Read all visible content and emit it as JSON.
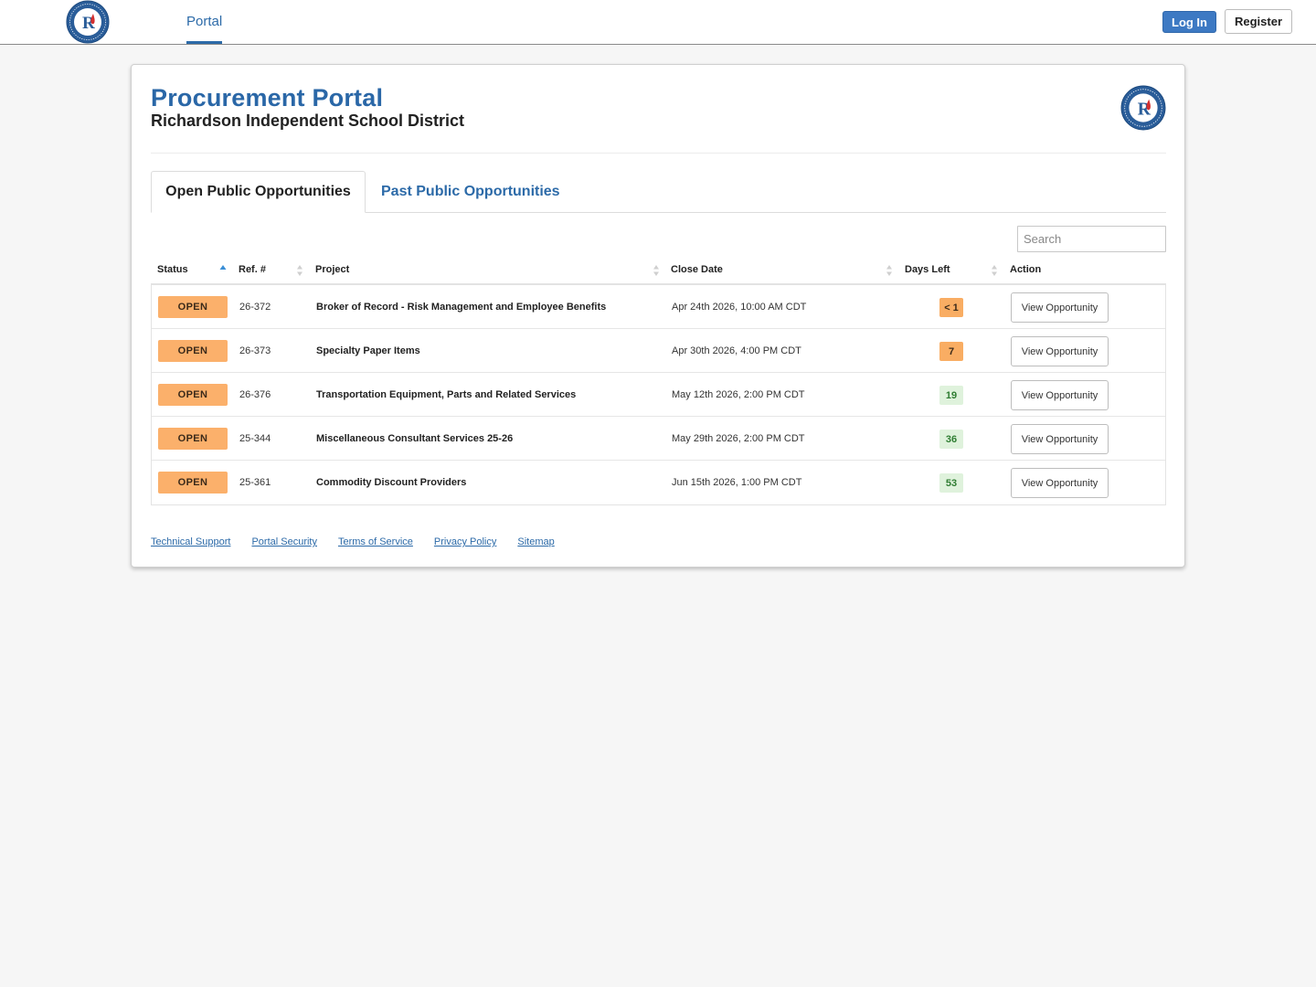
{
  "nav": {
    "portal_label": "Portal",
    "login_label": "Log In",
    "register_label": "Register"
  },
  "header": {
    "title": "Procurement Portal",
    "subtitle": "Richardson Independent School District",
    "logo_text": "R"
  },
  "tabs": [
    {
      "label": "Open Public Opportunities",
      "active": true
    },
    {
      "label": "Past Public Opportunities",
      "active": false
    }
  ],
  "search": {
    "placeholder": "Search",
    "value": ""
  },
  "table": {
    "columns": [
      "Status",
      "Ref. #",
      "Project",
      "Close Date",
      "Days Left",
      "Action"
    ],
    "rows": [
      {
        "status": "OPEN",
        "ref": "26-372",
        "project": "Broker of Record - Risk Management and Employee Benefits",
        "close_date": "Apr 24th 2026, 10:00 AM CDT",
        "days_left": "< 1",
        "days_state": "warn",
        "action": "View Opportunity"
      },
      {
        "status": "OPEN",
        "ref": "26-373",
        "project": "Specialty Paper Items",
        "close_date": "Apr 30th 2026, 4:00 PM CDT",
        "days_left": "7",
        "days_state": "warn",
        "action": "View Opportunity"
      },
      {
        "status": "OPEN",
        "ref": "26-376",
        "project": "Transportation Equipment, Parts and Related Services",
        "close_date": "May 12th 2026, 2:00 PM CDT",
        "days_left": "19",
        "days_state": "ok",
        "action": "View Opportunity"
      },
      {
        "status": "OPEN",
        "ref": "25-344",
        "project": "Miscellaneous Consultant Services 25-26",
        "close_date": "May 29th 2026, 2:00 PM CDT",
        "days_left": "36",
        "days_state": "ok",
        "action": "View Opportunity"
      },
      {
        "status": "OPEN",
        "ref": "25-361",
        "project": "Commodity Discount Providers",
        "close_date": "Jun 15th 2026, 1:00 PM CDT",
        "days_left": "53",
        "days_state": "ok",
        "action": "View Opportunity"
      }
    ]
  },
  "footer": {
    "links": [
      "Technical Support",
      "Portal Security",
      "Terms of Service",
      "Privacy Policy",
      "Sitemap"
    ]
  },
  "colors": {
    "brand_blue": "#2a67a7",
    "open_badge": "#fbb06b",
    "days_ok_bg": "#dff2dc",
    "days_ok_text": "#2f7d32"
  }
}
